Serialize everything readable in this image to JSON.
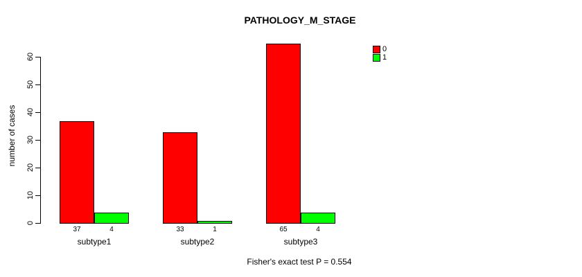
{
  "chart_data": {
    "type": "bar",
    "title": "PATHOLOGY_M_STAGE",
    "categories": [
      "subtype1",
      "subtype2",
      "subtype3"
    ],
    "series": [
      {
        "name": "0",
        "color": "#FF0000",
        "values": [
          37,
          33,
          65
        ]
      },
      {
        "name": "1",
        "color": "#00FF00",
        "values": [
          4,
          1,
          4
        ]
      }
    ],
    "xlabel": "",
    "ylabel": "number of cases",
    "ylim": [
      0,
      65
    ],
    "yticks": [
      0,
      10,
      20,
      30,
      40,
      50,
      60
    ],
    "bar_value_labels": [
      [
        "37",
        "4"
      ],
      [
        "33",
        "1"
      ],
      [
        "65",
        "4"
      ]
    ],
    "annotation": "Fisher's exact test P = 0.554",
    "legend_position": "top-right",
    "grid": false,
    "bar_border_color": "#000000",
    "text_color": "#000000",
    "background_color": "#ffffff"
  }
}
